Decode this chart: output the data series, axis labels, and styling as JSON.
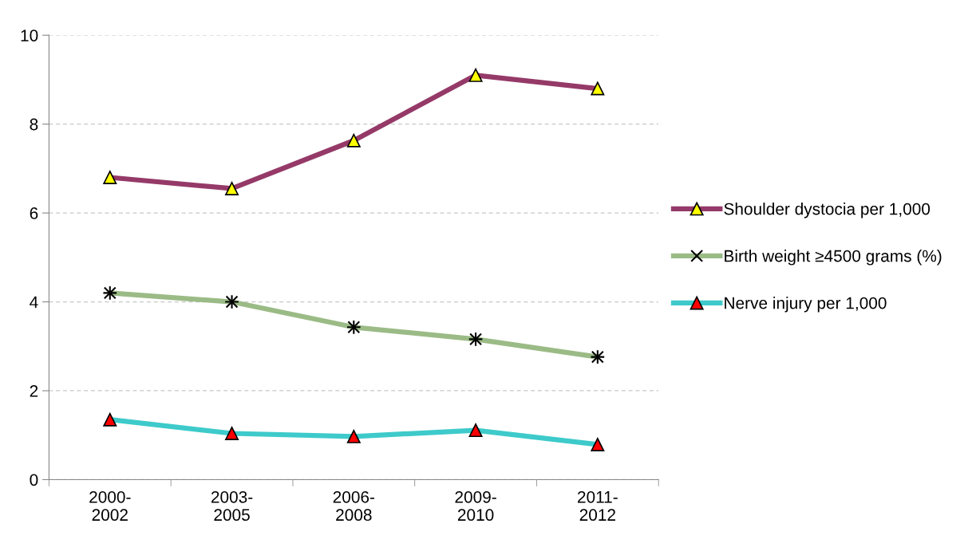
{
  "chart_data": {
    "type": "line",
    "categories": [
      "2000-\n2002",
      "2003-\n2005",
      "2006-\n2008",
      "2009-\n2010",
      "2011-\n2012"
    ],
    "series": [
      {
        "name": "Shoulder dystocia per 1,000",
        "color": "#953a68",
        "marker": "triangle",
        "values": [
          6.8,
          6.55,
          7.63,
          9.1,
          8.8
        ]
      },
      {
        "name": "Birth weight ≥4500 grams (%)",
        "color": "#9bbb86",
        "marker": "cross",
        "values": [
          4.2,
          4.0,
          3.43,
          3.16,
          2.76
        ]
      },
      {
        "name": "Nerve injury per 1,000",
        "color": "#3ecaca",
        "marker": "triangle",
        "values": [
          1.35,
          1.04,
          0.97,
          1.11,
          0.79
        ]
      }
    ],
    "ylim": [
      0,
      10
    ],
    "yticks": [
      0,
      2,
      4,
      6,
      8,
      10
    ],
    "grid": "y",
    "legend": "right",
    "line_style": "solid"
  }
}
